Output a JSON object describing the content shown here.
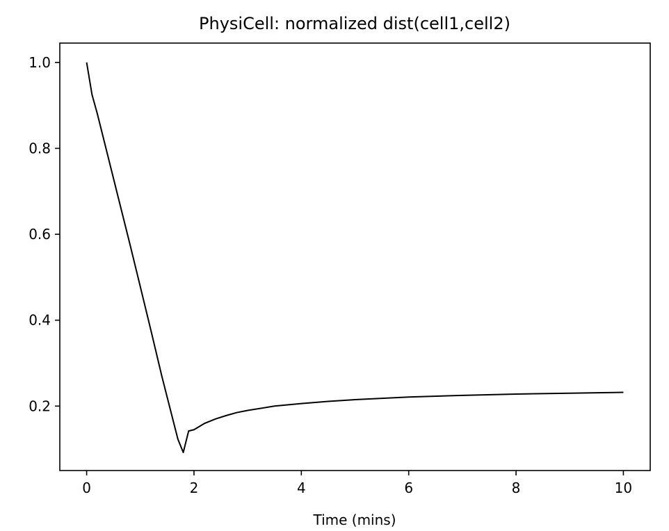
{
  "chart_data": {
    "type": "line",
    "title": "PhysiCell: normalized dist(cell1,cell2)",
    "xlabel": "Time (mins)",
    "ylabel": "",
    "xlim": [
      -0.5,
      10.5
    ],
    "ylim": [
      0.05,
      1.045
    ],
    "xticks": [
      0,
      2,
      4,
      6,
      8,
      10
    ],
    "xtick_labels": [
      "0",
      "2",
      "4",
      "6",
      "8",
      "10"
    ],
    "yticks": [
      0.2,
      0.4,
      0.6,
      0.8,
      1.0
    ],
    "ytick_labels": [
      "0.2",
      "0.4",
      "0.6",
      "0.8",
      "1.0"
    ],
    "grid": false,
    "legend": "none",
    "line_color": "#000000",
    "series": [
      {
        "x": [
          0,
          0.1,
          0.2,
          0.4,
          0.6,
          0.8,
          1.0,
          1.2,
          1.4,
          1.6,
          1.7,
          1.8,
          1.9,
          2.0,
          2.2,
          2.4,
          2.6,
          2.8,
          3.0,
          3.5,
          4.0,
          4.5,
          5.0,
          6.0,
          7.0,
          8.0,
          9.0,
          10.0
        ],
        "y": [
          1.0,
          0.925,
          0.88,
          0.78,
          0.68,
          0.58,
          0.478,
          0.375,
          0.27,
          0.172,
          0.123,
          0.092,
          0.142,
          0.145,
          0.16,
          0.17,
          0.178,
          0.185,
          0.19,
          0.2,
          0.206,
          0.211,
          0.215,
          0.221,
          0.225,
          0.228,
          0.23,
          0.232
        ]
      }
    ]
  }
}
